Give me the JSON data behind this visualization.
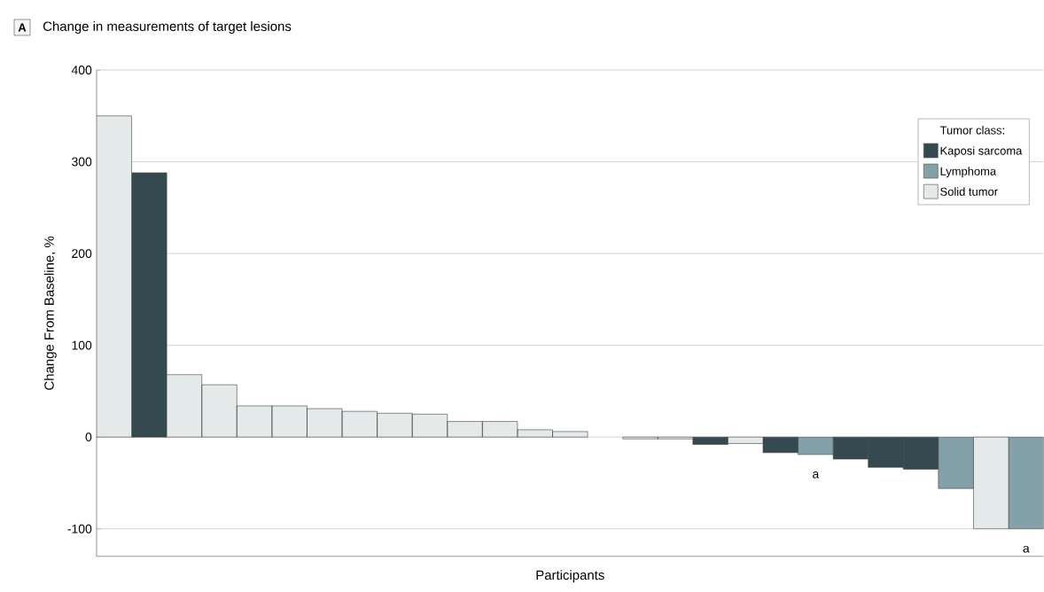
{
  "chart_data": {
    "type": "bar",
    "title": "Change in measurements of target lesions",
    "annotations": [
      "A"
    ],
    "xlabel": "Participants",
    "ylabel": "Change From Baseline, %",
    "legend_title": "Tumor class:",
    "categories": [
      null,
      null,
      null,
      null,
      null,
      null,
      null,
      null,
      null,
      null,
      null,
      null,
      null,
      null,
      null,
      null,
      null,
      null,
      null,
      null,
      null,
      null,
      null,
      null,
      null,
      null,
      null
    ],
    "series": [
      {
        "name": "Kaposi sarcoma",
        "color": "#344a50",
        "values": [
          null,
          288,
          null,
          null,
          null,
          null,
          null,
          null,
          null,
          null,
          null,
          null,
          null,
          null,
          null,
          null,
          null,
          -8,
          null,
          -17,
          null,
          -24,
          -33,
          -35,
          null,
          null,
          null
        ]
      },
      {
        "name": "Lymphoma",
        "color": "#82a1a9",
        "values": [
          null,
          null,
          null,
          null,
          null,
          null,
          null,
          null,
          null,
          null,
          null,
          null,
          null,
          null,
          null,
          null,
          null,
          null,
          null,
          null,
          -19,
          null,
          null,
          null,
          -56,
          null,
          -100
        ],
        "value_labels": [
          null,
          null,
          null,
          null,
          null,
          null,
          null,
          null,
          null,
          null,
          null,
          null,
          null,
          null,
          null,
          null,
          null,
          null,
          null,
          null,
          "a",
          null,
          null,
          null,
          null,
          null,
          "a"
        ]
      },
      {
        "name": "Solid tumor",
        "color": "#e4e9e9",
        "values": [
          350,
          null,
          68,
          57,
          34,
          34,
          31,
          28,
          26,
          25,
          17,
          17,
          8,
          6,
          null,
          -2,
          -2,
          null,
          -7,
          null,
          null,
          null,
          null,
          null,
          null,
          -100,
          null
        ]
      }
    ],
    "ylim": [
      -130,
      400
    ],
    "yticks": [
      -100,
      0,
      100,
      200,
      300,
      400
    ],
    "grid": "y",
    "legend": "top right"
  }
}
